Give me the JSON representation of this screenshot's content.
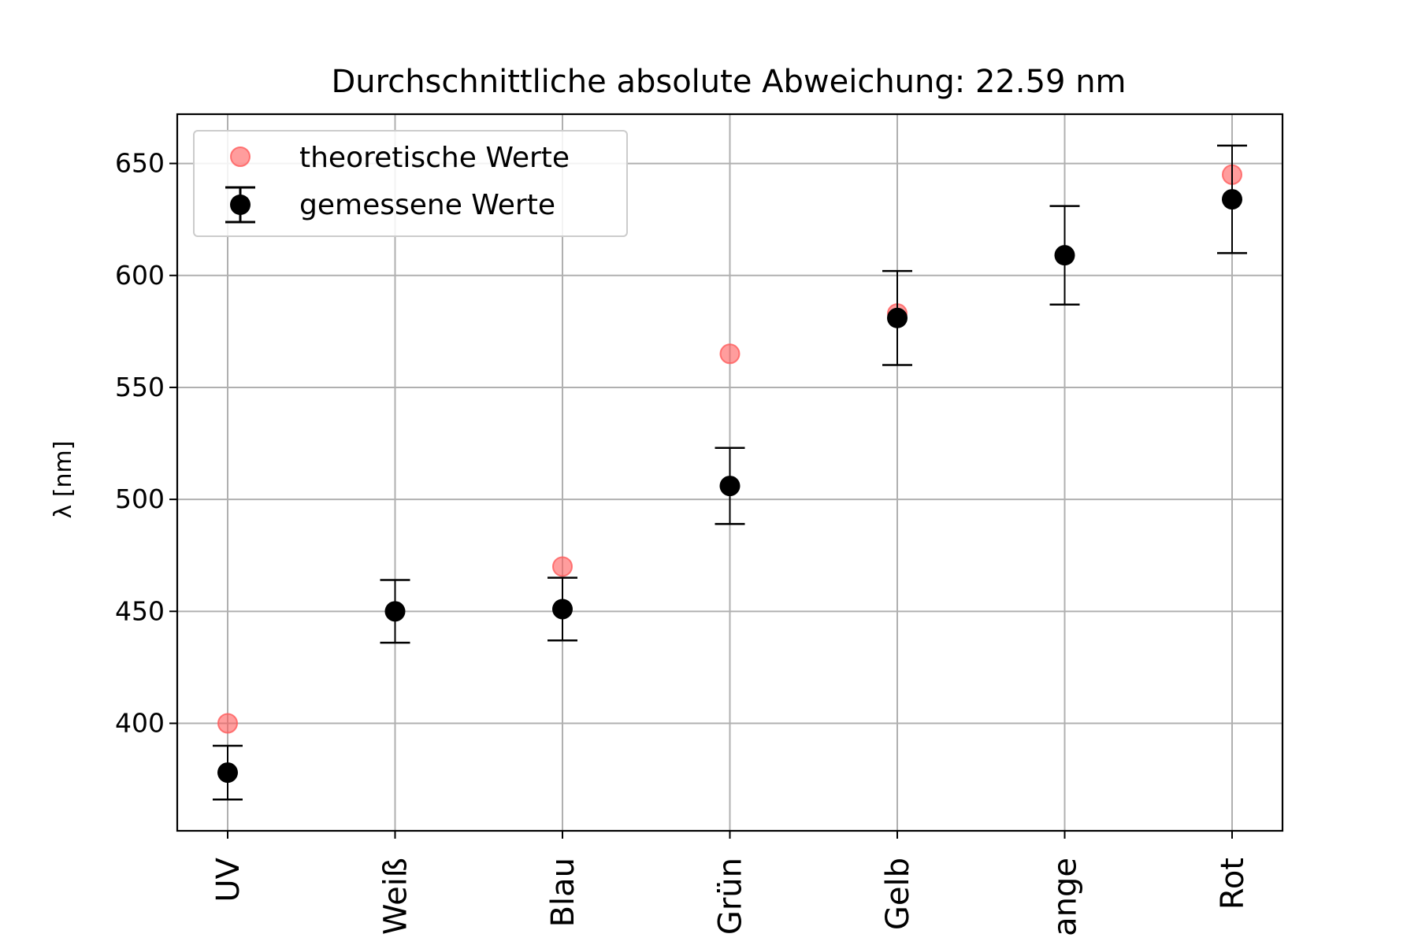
{
  "chart_data": {
    "type": "scatter",
    "title": "Durchschnittliche absolute Abweichung: 22.59 nm",
    "xlabel": "",
    "ylabel": "λ [nm]",
    "categories": [
      "UV",
      "Weiß",
      "Blau",
      "Grün",
      "Gelb",
      "Orange",
      "Rot"
    ],
    "category_labels_visible": [
      "UV",
      "Weiß",
      "Blau",
      "Grün",
      "Gelb",
      "ange",
      "Rot"
    ],
    "yticks": [
      "400",
      "450",
      "500",
      "550",
      "600",
      "650"
    ],
    "ylim": [
      352,
      672
    ],
    "grid": true,
    "legend_position": "top-left",
    "series": [
      {
        "name": "theoretische Werte",
        "color": "#ff5b5b",
        "values": [
          400,
          null,
          470,
          565,
          583,
          null,
          645
        ]
      },
      {
        "name": "gemessene Werte",
        "color": "#000000",
        "values": [
          378,
          450,
          451,
          506,
          581,
          609,
          634
        ],
        "errors": [
          12,
          14,
          14,
          17,
          21,
          22,
          24
        ]
      }
    ]
  }
}
